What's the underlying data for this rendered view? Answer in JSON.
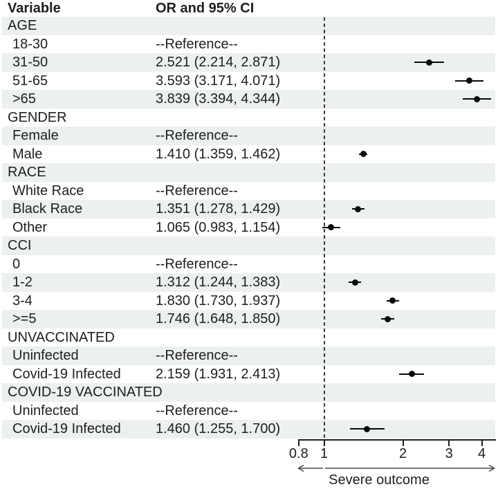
{
  "figure": {
    "col_header_variable": "Variable",
    "col_header_or_ci": "OR and 95% CI"
  },
  "colors": {
    "background": "#FFFFFF",
    "stripe": "#ECF0EE",
    "text": "#1E1E1E",
    "marker": "#0A0A0A",
    "axis": "#1E1E1E",
    "refline": "#3A3A3A",
    "arrow": "#4A4A4A"
  },
  "chart_data": {
    "type": "forest",
    "x_scale": "log",
    "x_ticks": [
      0.8,
      1,
      2,
      3,
      4
    ],
    "x_range": [
      0.8,
      4.5
    ],
    "reference_value": 1,
    "xlabel": "Severe outcome",
    "grid": false,
    "rows": [
      {
        "label": "AGE",
        "kind": "group",
        "text": ""
      },
      {
        "label": "18-30",
        "kind": "ref",
        "text": "--Reference--"
      },
      {
        "label": "31-50",
        "kind": "est",
        "text": "2.521 (2.214, 2.871)",
        "or": 2.521,
        "lo": 2.214,
        "hi": 2.871
      },
      {
        "label": "51-65",
        "kind": "est",
        "text": "3.593 (3.171, 4.071)",
        "or": 3.593,
        "lo": 3.171,
        "hi": 4.071
      },
      {
        "label": ">65",
        "kind": "est",
        "text": "3.839 (3.394, 4.344)",
        "or": 3.839,
        "lo": 3.394,
        "hi": 4.344
      },
      {
        "label": "GENDER",
        "kind": "group",
        "text": ""
      },
      {
        "label": "Female",
        "kind": "ref",
        "text": "--Reference--"
      },
      {
        "label": "Male",
        "kind": "est",
        "text": "1.410 (1.359, 1.462)",
        "or": 1.41,
        "lo": 1.359,
        "hi": 1.462
      },
      {
        "label": "RACE",
        "kind": "group",
        "text": ""
      },
      {
        "label": "White Race",
        "kind": "ref",
        "text": "--Reference--"
      },
      {
        "label": "Black Race",
        "kind": "est",
        "text": "1.351 (1.278, 1.429)",
        "or": 1.351,
        "lo": 1.278,
        "hi": 1.429
      },
      {
        "label": "Other",
        "kind": "est",
        "text": "1.065 (0.983, 1.154)",
        "or": 1.065,
        "lo": 0.983,
        "hi": 1.154
      },
      {
        "label": "CCI",
        "kind": "group",
        "text": ""
      },
      {
        "label": "0",
        "kind": "ref",
        "text": "--Reference--"
      },
      {
        "label": "1-2",
        "kind": "est",
        "text": "1.312 (1.244, 1.383)",
        "or": 1.312,
        "lo": 1.244,
        "hi": 1.383
      },
      {
        "label": "3-4",
        "kind": "est",
        "text": "1.830 (1.730, 1.937)",
        "or": 1.83,
        "lo": 1.73,
        "hi": 1.937
      },
      {
        "label": ">=5",
        "kind": "est",
        "text": "1.746 (1.648, 1.850)",
        "or": 1.746,
        "lo": 1.648,
        "hi": 1.85
      },
      {
        "label": "UNVACCINATED",
        "kind": "group",
        "text": ""
      },
      {
        "label": "Uninfected",
        "kind": "ref",
        "text": "--Reference--"
      },
      {
        "label": "Covid-19 Infected",
        "kind": "est",
        "text": "2.159 (1.931, 2.413)",
        "or": 2.159,
        "lo": 1.931,
        "hi": 2.413
      },
      {
        "label": "COVID-19 VACCINATED",
        "kind": "group",
        "text": ""
      },
      {
        "label": "Uninfected",
        "kind": "ref",
        "text": "--Reference--"
      },
      {
        "label": "Covid-19 Infected",
        "kind": "est",
        "text": "1.460 (1.255, 1.700)",
        "or": 1.46,
        "lo": 1.255,
        "hi": 1.7
      }
    ]
  }
}
